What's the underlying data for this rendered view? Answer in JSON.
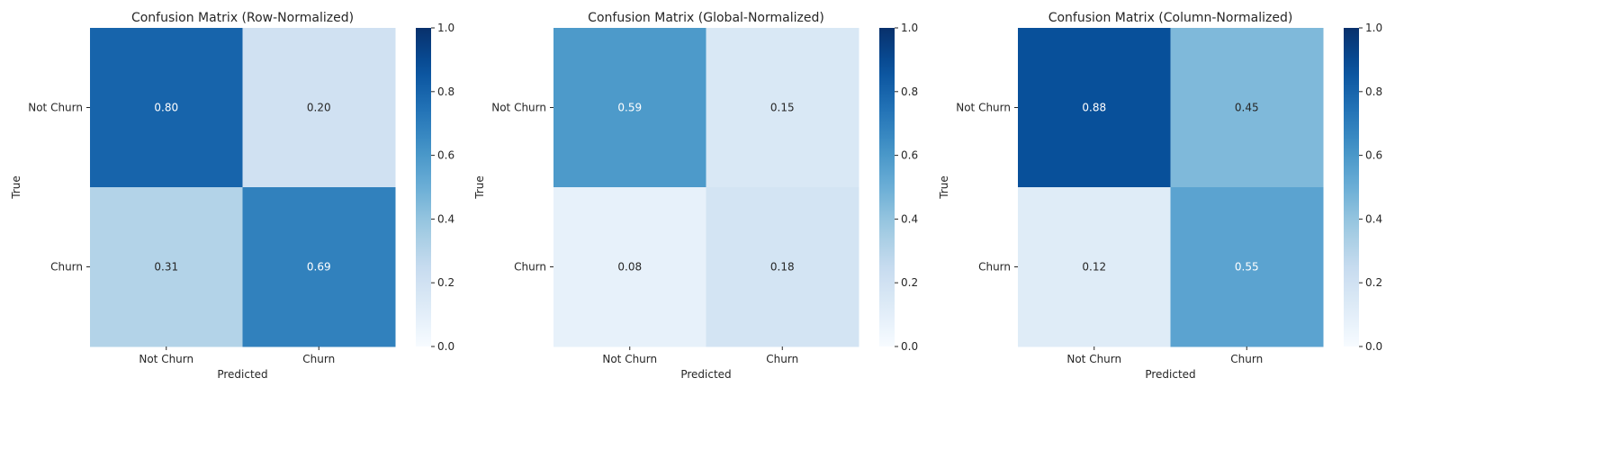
{
  "chart_data": [
    {
      "type": "heatmap",
      "title": "Confusion Matrix (Row-Normalized)",
      "xlabel": "Predicted",
      "ylabel": "True",
      "x_categories": [
        "Not Churn",
        "Churn"
      ],
      "y_categories": [
        "Not Churn",
        "Churn"
      ],
      "values": [
        [
          0.8,
          0.2
        ],
        [
          0.31,
          0.69
        ]
      ],
      "value_format": "0.00",
      "colormap": "Blues",
      "vmin": 0.0,
      "vmax": 1.0,
      "colorbar_ticks": [
        "0.0",
        "0.2",
        "0.4",
        "0.6",
        "0.8",
        "1.0"
      ]
    },
    {
      "type": "heatmap",
      "title": "Confusion Matrix (Global-Normalized)",
      "xlabel": "Predicted",
      "ylabel": "True",
      "x_categories": [
        "Not Churn",
        "Churn"
      ],
      "y_categories": [
        "Not Churn",
        "Churn"
      ],
      "values": [
        [
          0.59,
          0.15
        ],
        [
          0.08,
          0.18
        ]
      ],
      "value_format": "0.00",
      "colormap": "Blues",
      "vmin": 0.0,
      "vmax": 1.0,
      "colorbar_ticks": [
        "0.0",
        "0.2",
        "0.4",
        "0.6",
        "0.8",
        "1.0"
      ]
    },
    {
      "type": "heatmap",
      "title": "Confusion Matrix (Column-Normalized)",
      "xlabel": "Predicted",
      "ylabel": "True",
      "x_categories": [
        "Not Churn",
        "Churn"
      ],
      "y_categories": [
        "Not Churn",
        "Churn"
      ],
      "values": [
        [
          0.88,
          0.45
        ],
        [
          0.12,
          0.55
        ]
      ],
      "value_format": "0.00",
      "colormap": "Blues",
      "vmin": 0.0,
      "vmax": 1.0,
      "colorbar_ticks": [
        "0.0",
        "0.2",
        "0.4",
        "0.6",
        "0.8",
        "1.0"
      ]
    }
  ]
}
